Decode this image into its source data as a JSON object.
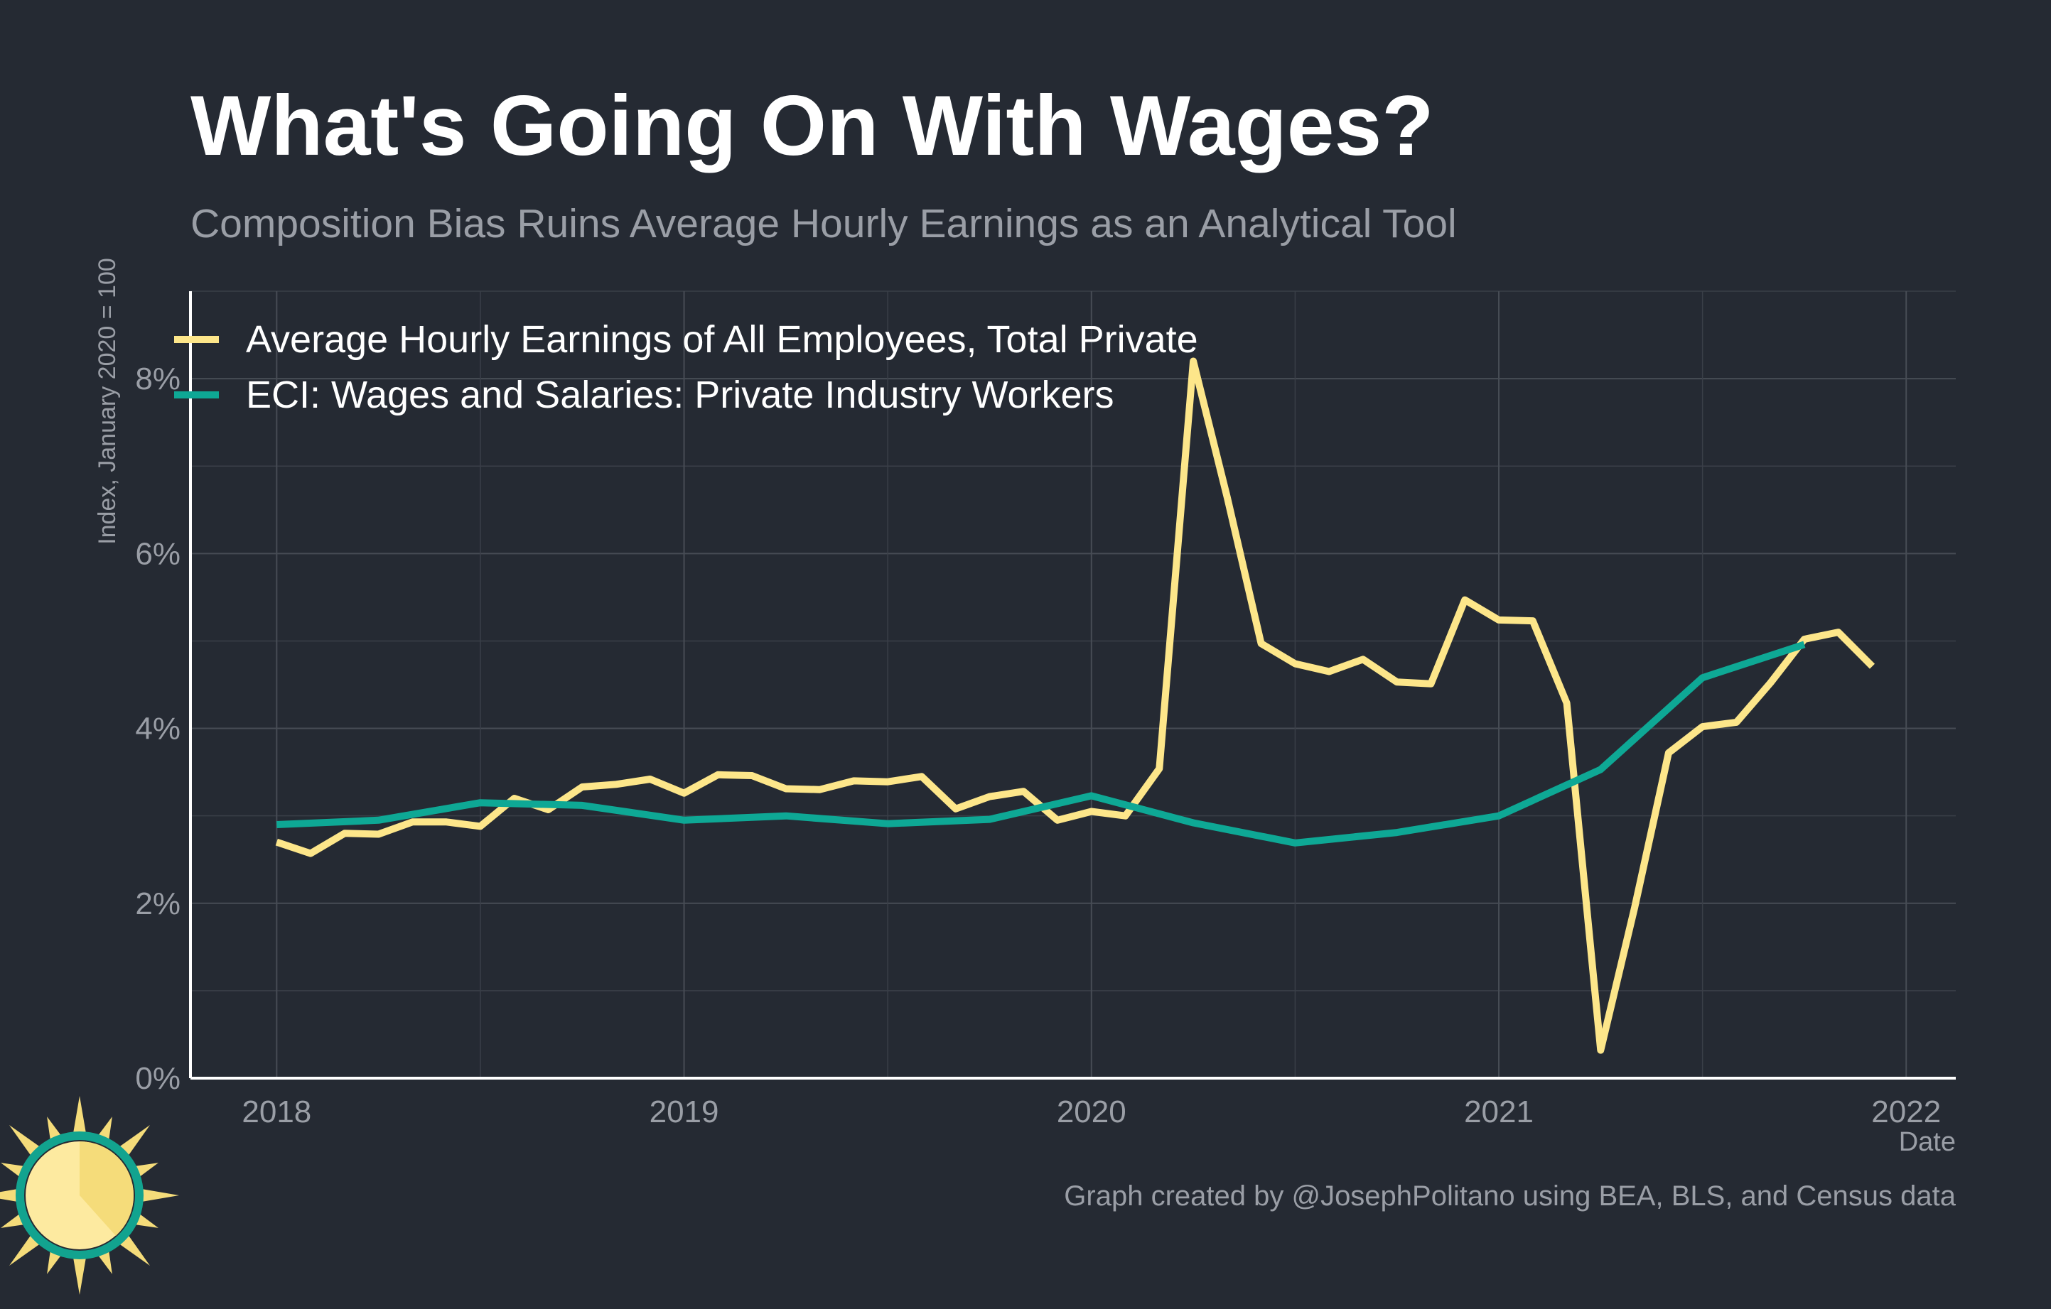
{
  "title": "What's Going On With Wages?",
  "subtitle": "Composition Bias Ruins Average Hourly Earnings as an Analytical Tool",
  "caption": "Graph created by @JosephPolitano using BEA, BLS, and Census data",
  "chart_data": {
    "type": "line",
    "title": "What's Going On With Wages?",
    "subtitle": "Composition Bias Ruins Average Hourly Earnings as an Analytical Tool",
    "xlabel": "Date",
    "ylabel": "Index, January 2020 = 100",
    "xlim": [
      "2017-10-15",
      "2022-02-15"
    ],
    "ylim": [
      0,
      9
    ],
    "x_ticks": [
      "2018",
      "2019",
      "2020",
      "2021",
      "2022"
    ],
    "y_ticks": [
      "0%",
      "2%",
      "4%",
      "6%",
      "8%"
    ],
    "grid": true,
    "legend_position": "top-left",
    "series": [
      {
        "name": "Average Hourly Earnings of All Employees, Total Private",
        "color": "#fde68a",
        "x": [
          "2018-01",
          "2018-02",
          "2018-03",
          "2018-04",
          "2018-05",
          "2018-06",
          "2018-07",
          "2018-08",
          "2018-09",
          "2018-10",
          "2018-11",
          "2018-12",
          "2019-01",
          "2019-02",
          "2019-03",
          "2019-04",
          "2019-05",
          "2019-06",
          "2019-07",
          "2019-08",
          "2019-09",
          "2019-10",
          "2019-11",
          "2019-12",
          "2020-01",
          "2020-02",
          "2020-03",
          "2020-04",
          "2020-05",
          "2020-06",
          "2020-07",
          "2020-08",
          "2020-09",
          "2020-10",
          "2020-11",
          "2020-12",
          "2021-01",
          "2021-02",
          "2021-03",
          "2021-04",
          "2021-05",
          "2021-06",
          "2021-07",
          "2021-08",
          "2021-09",
          "2021-10",
          "2021-11",
          "2021-12"
        ],
        "values": [
          2.7,
          2.57,
          2.8,
          2.79,
          2.93,
          2.93,
          2.88,
          3.2,
          3.07,
          3.33,
          3.36,
          3.42,
          3.26,
          3.47,
          3.46,
          3.31,
          3.3,
          3.4,
          3.39,
          3.45,
          3.08,
          3.22,
          3.28,
          2.95,
          3.05,
          3.0,
          3.54,
          8.2,
          6.64,
          4.97,
          4.74,
          4.65,
          4.79,
          4.53,
          4.51,
          5.47,
          5.24,
          5.23,
          4.29,
          0.32,
          1.95,
          3.72,
          4.02,
          4.07,
          4.52,
          5.02,
          5.1,
          4.71
        ]
      },
      {
        "name": "ECI: Wages and Salaries: Private Industry Workers",
        "color": "#0ea895",
        "x": [
          "2018-01",
          "2018-04",
          "2018-07",
          "2018-10",
          "2019-01",
          "2019-04",
          "2019-07",
          "2019-10",
          "2020-01",
          "2020-04",
          "2020-07",
          "2020-10",
          "2021-01",
          "2021-04",
          "2021-07",
          "2021-10"
        ],
        "values": [
          2.9,
          2.95,
          3.15,
          3.12,
          2.95,
          3.0,
          2.91,
          2.96,
          3.23,
          2.92,
          2.69,
          2.81,
          3.0,
          3.53,
          4.58,
          4.96
        ]
      }
    ]
  },
  "logo": {
    "name": "sun-logo",
    "colors": [
      "#f5dc7a",
      "#fdeaa0",
      "#12a38f"
    ]
  }
}
